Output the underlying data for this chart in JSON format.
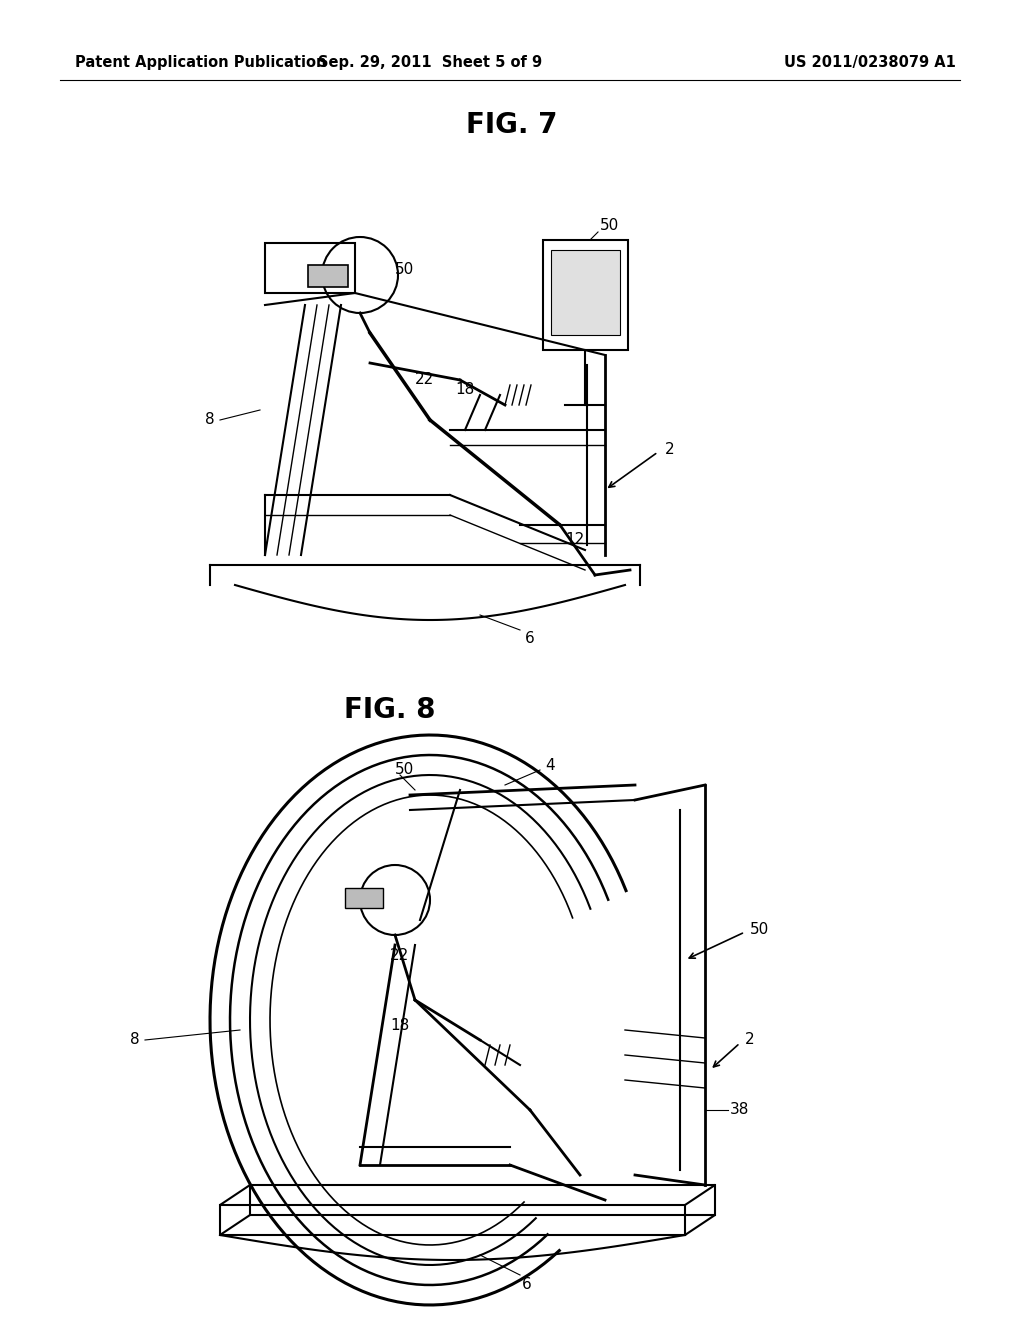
{
  "background_color": "#ffffff",
  "page_width": 10.24,
  "page_height": 13.2,
  "header": {
    "left_text": "Patent Application Publication",
    "center_text": "Sep. 29, 2011  Sheet 5 of 9",
    "right_text": "US 2011/0238079 A1",
    "fontsize": 10.5
  },
  "fig7_title": "FIG. 7",
  "fig8_title": "FIG. 8",
  "title_fontsize": 20,
  "annotation_fontsize": 11,
  "line_color": "#000000"
}
